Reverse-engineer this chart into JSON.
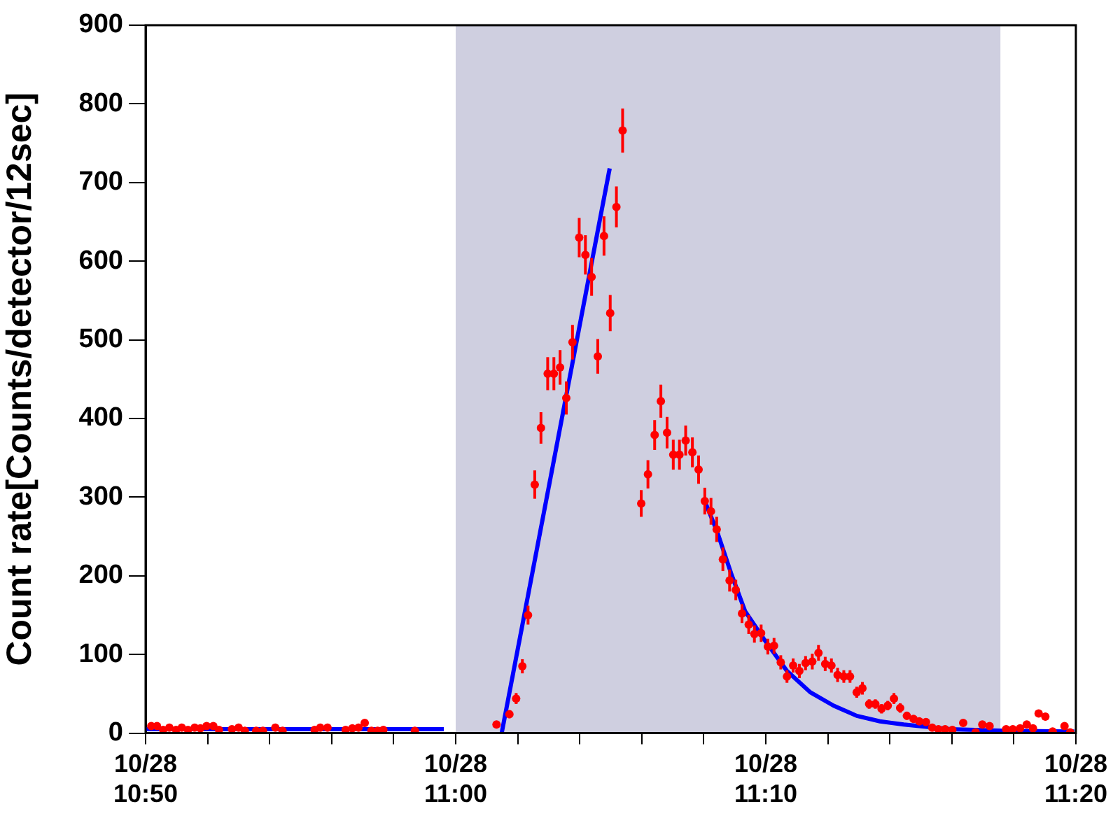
{
  "chart_data": {
    "type": "scatter",
    "ylabel": "Count rate[Counts/detector/12sec]",
    "xlim": [
      "--10-28T10:50",
      "--10-28T11:20"
    ],
    "xticks": [
      {
        "value": "--10-28T10:50",
        "label": "10/28\n10:50"
      },
      {
        "value": "--10-28T10:52",
        "label": null
      },
      {
        "value": "--10-28T10:54",
        "label": null
      },
      {
        "value": "--10-28T10:56",
        "label": null
      },
      {
        "value": "--10-28T10:58",
        "label": null
      },
      {
        "value": "--10-28T11:00",
        "label": "10/28\n11:00"
      },
      {
        "value": "--10-28T11:02",
        "label": null
      },
      {
        "value": "--10-28T11:04",
        "label": null
      },
      {
        "value": "--10-28T11:06",
        "label": null
      },
      {
        "value": "--10-28T11:08",
        "label": null
      },
      {
        "value": "--10-28T11:10",
        "label": "10/28\n11:10"
      },
      {
        "value": "--10-28T11:12",
        "label": null
      },
      {
        "value": "--10-28T11:14",
        "label": null
      },
      {
        "value": "--10-28T11:16",
        "label": null
      },
      {
        "value": "--10-28T11:18",
        "label": null
      },
      {
        "value": "--10-28T11:20",
        "label": "10/28\n11:20"
      }
    ],
    "ylim": [
      0,
      900
    ],
    "yticks": [
      0,
      100,
      200,
      300,
      400,
      500,
      600,
      700,
      800,
      900
    ],
    "grid": false,
    "legend": false,
    "marker": "circle",
    "bands": [
      {
        "axis": "x",
        "from": "--10-28T11:00",
        "to": "--10-28T11:17:34",
        "color": "#cfcfe0"
      }
    ],
    "series": [
      {
        "color": "#ff0000",
        "x": [
          "--10-28T10:50:11",
          "--10-28T10:50:22",
          "--10-28T10:50:34",
          "--10-28T10:50:46",
          "--10-28T10:50:59",
          "--10-28T10:51:10",
          "--10-28T10:51:22",
          "--10-28T10:51:35",
          "--10-28T10:51:46",
          "--10-28T10:51:58",
          "--10-28T10:52:11",
          "--10-28T10:52:22",
          "--10-28T10:52:47",
          "--10-28T10:53:00",
          "--10-28T10:53:12",
          "--10-28T10:53:34",
          "--10-28T10:53:47",
          "--10-28T10:54:11",
          "--10-28T10:54:25",
          "--10-28T10:55:27",
          "--10-28T10:55:38",
          "--10-28T10:55:52",
          "--10-28T10:56:27",
          "--10-28T10:56:40",
          "--10-28T10:56:52",
          "--10-28T10:57:04",
          "--10-28T10:57:17",
          "--10-28T10:57:29",
          "--10-28T10:57:40",
          "--10-28T10:58:41",
          "--10-28T11:01:19",
          "--10-28T11:01:44",
          "--10-28T11:01:57",
          "--10-28T11:02:09",
          "--10-28T11:02:20",
          "--10-28T11:02:33",
          "--10-28T11:02:45",
          "--10-28T11:02:58",
          "--10-28T11:03:10",
          "--10-28T11:03:22",
          "--10-28T11:03:34",
          "--10-28T11:03:46",
          "--10-28T11:03:59",
          "--10-28T11:04:11",
          "--10-28T11:04:23",
          "--10-28T11:04:35",
          "--10-28T11:04:47",
          "--10-28T11:04:59",
          "--10-28T11:05:11",
          "--10-28T11:05:23",
          "--10-28T11:05:59",
          "--10-28T11:06:12",
          "--10-28T11:06:25",
          "--10-28T11:06:37",
          "--10-28T11:06:49",
          "--10-28T11:07:01",
          "--10-28T11:07:13",
          "--10-28T11:07:25",
          "--10-28T11:07:38",
          "--10-28T11:07:50",
          "--10-28T11:08:02",
          "--10-28T11:08:14",
          "--10-28T11:08:25",
          "--10-28T11:08:37",
          "--10-28T11:08:50",
          "--10-28T11:09:02",
          "--10-28T11:09:14",
          "--10-28T11:09:27",
          "--10-28T11:09:38",
          "--10-28T11:09:51",
          "--10-28T11:10:04",
          "--10-28T11:10:16",
          "--10-28T11:10:29",
          "--10-28T11:10:41",
          "--10-28T11:10:53",
          "--10-28T11:11:05",
          "--10-28T11:11:17",
          "--10-28T11:11:30",
          "--10-28T11:11:42",
          "--10-28T11:11:55",
          "--10-28T11:12:07",
          "--10-28T11:12:19",
          "--10-28T11:12:31",
          "--10-28T11:12:43",
          "--10-28T11:12:56",
          "--10-28T11:13:07",
          "--10-28T11:13:20",
          "--10-28T11:13:32",
          "--10-28T11:13:44",
          "--10-28T11:13:56",
          "--10-28T11:14:08",
          "--10-28T11:14:20",
          "--10-28T11:14:33",
          "--10-28T11:14:46",
          "--10-28T11:14:57",
          "--10-28T11:15:10",
          "--10-28T11:15:22",
          "--10-28T11:15:34",
          "--10-28T11:15:47",
          "--10-28T11:16:01",
          "--10-28T11:16:22",
          "--10-28T11:16:46",
          "--10-28T11:16:59",
          "--10-28T11:17:13",
          "--10-28T11:17:45",
          "--10-28T11:17:58",
          "--10-28T11:18:12",
          "--10-28T11:18:25",
          "--10-28T11:18:37",
          "--10-28T11:18:48",
          "--10-28T11:19:01",
          "--10-28T11:19:15",
          "--10-28T11:19:38",
          "--10-28T11:19:49"
        ],
        "values": [
          9,
          9,
          4,
          7,
          4,
          7,
          4,
          7,
          6,
          9,
          9,
          4,
          5,
          7,
          3,
          3,
          3,
          7,
          3,
          4,
          7,
          7,
          4,
          6,
          7,
          13,
          3,
          3,
          4,
          3,
          11,
          24,
          44,
          85,
          150,
          316,
          388,
          457,
          457,
          465,
          426,
          497,
          630,
          608,
          580,
          479,
          632,
          534,
          669,
          766,
          292,
          329,
          379,
          422,
          382,
          354,
          354,
          372,
          357,
          335,
          295,
          282,
          259,
          221,
          194,
          182,
          152,
          138,
          126,
          127,
          110,
          111,
          90,
          72,
          86,
          79,
          89,
          91,
          102,
          88,
          86,
          74,
          72,
          72,
          52,
          57,
          37,
          37,
          31,
          35,
          44,
          32,
          22,
          18,
          15,
          14,
          7,
          5,
          5,
          4,
          13,
          1,
          11,
          9,
          5,
          5,
          6,
          11,
          6,
          25,
          21,
          2,
          9,
          1
        ],
        "errors": [
          null,
          null,
          null,
          null,
          null,
          null,
          null,
          null,
          null,
          null,
          null,
          null,
          null,
          null,
          null,
          null,
          null,
          null,
          null,
          null,
          null,
          null,
          null,
          null,
          null,
          null,
          null,
          null,
          null,
          null,
          null,
          5,
          7,
          9,
          12,
          18,
          20,
          21,
          21,
          22,
          21,
          22,
          25,
          25,
          24,
          22,
          25,
          23,
          26,
          28,
          17,
          18,
          19,
          21,
          20,
          19,
          19,
          19,
          19,
          18,
          17,
          17,
          16,
          15,
          14,
          13,
          12,
          12,
          11,
          11,
          10,
          10,
          9,
          8,
          9,
          9,
          9,
          10,
          10,
          9,
          9,
          9,
          8,
          8,
          7,
          8,
          6,
          6,
          6,
          6,
          7,
          6,
          5,
          null,
          null,
          null,
          null,
          null,
          null,
          null,
          null,
          null,
          null,
          null,
          null,
          null,
          null,
          null,
          null,
          null,
          null,
          null,
          null,
          null
        ]
      },
      {
        "type": "line",
        "marker": "none",
        "color": "#0000ff",
        "x": [
          "--10-28T10:50",
          "--10-28T10:59:37"
        ],
        "values": [
          5,
          5
        ]
      },
      {
        "type": "line",
        "marker": "none",
        "color": "#0000ff",
        "x": [
          "--10-28T11:01:29",
          "--10-28T11:04:58"
        ],
        "values": [
          0,
          718
        ]
      },
      {
        "type": "line",
        "marker": "none",
        "color": "#0000ff",
        "x": [
          "--10-28T11:08:02",
          "--10-28T11:08:26",
          "--10-28T11:08:53",
          "--10-28T11:09:20",
          "--10-28T11:09:56",
          "--10-28T11:10:41",
          "--10-28T11:11:26",
          "--10-28T11:12:11",
          "--10-28T11:12:56",
          "--10-28T11:13:41",
          "--10-28T11:14:27",
          "--10-28T11:15:57",
          "--10-28T11:17:45",
          "--10-28T11:19:57"
        ],
        "values": [
          295,
          256,
          203,
          155,
          120,
          79,
          52,
          35,
          22,
          15,
          11,
          5,
          3,
          2
        ]
      }
    ]
  }
}
